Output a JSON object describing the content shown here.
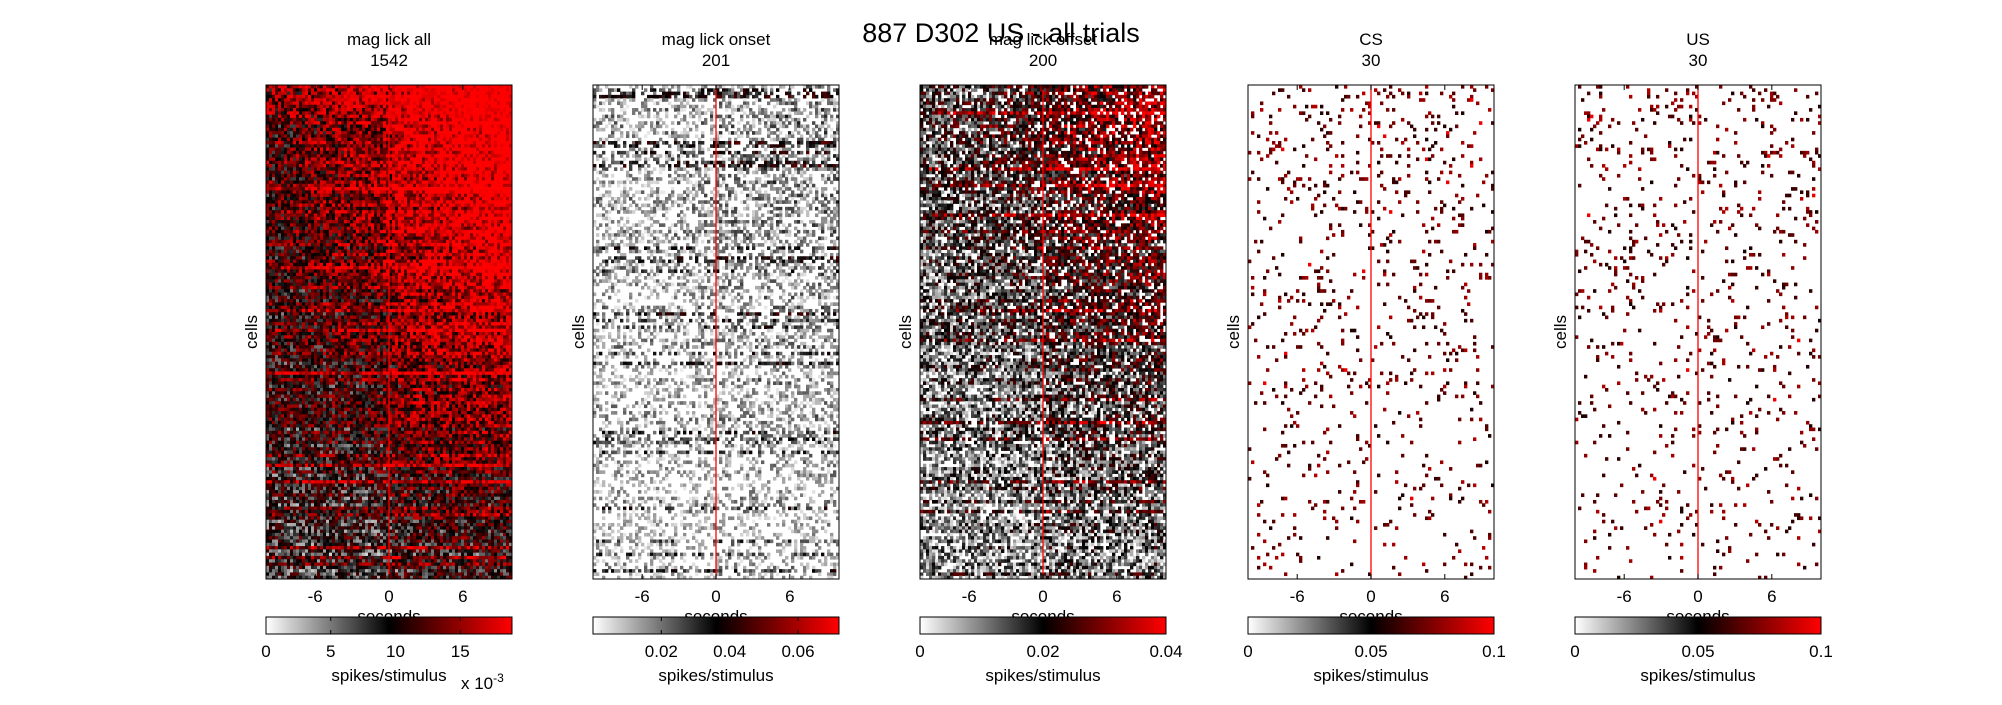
{
  "figure": {
    "title": "887 D302 US - all trials"
  },
  "chart_data": [
    {
      "type": "heatmap",
      "title": "mag lick  all",
      "subtitle": "1542",
      "xlabel": "seconds",
      "ylabel": "cells",
      "xlim": [
        -10,
        10
      ],
      "xticks": [
        -6,
        0,
        6
      ],
      "event_line_x": 0,
      "density": "high",
      "colorbar": {
        "label": "spikes/stimulus",
        "range": [
          0,
          0.019
        ],
        "ticks": [
          0,
          0.005,
          0.01,
          0.015
        ],
        "tick_labels": [
          "0",
          "5",
          "10",
          "15"
        ],
        "exponent_label": "x 10",
        "exponent_power": "-3",
        "colormap": [
          "#ffffff",
          "#000000",
          "#ff0000"
        ]
      }
    },
    {
      "type": "heatmap",
      "title": "mag lick  onset",
      "subtitle": "201",
      "xlabel": "seconds",
      "ylabel": "cells",
      "xlim": [
        -10,
        10
      ],
      "xticks": [
        -6,
        0,
        6
      ],
      "event_line_x": 0,
      "density": "low",
      "colorbar": {
        "label": "spikes/stimulus",
        "range": [
          0,
          0.072
        ],
        "ticks": [
          0.02,
          0.04,
          0.06
        ],
        "tick_labels": [
          "0.02",
          "0.04",
          "0.06"
        ],
        "colormap": [
          "#ffffff",
          "#000000",
          "#ff0000"
        ]
      }
    },
    {
      "type": "heatmap",
      "title": "mag lick  offset",
      "subtitle": "200",
      "xlabel": "seconds",
      "ylabel": "cells",
      "xlim": [
        -10,
        10
      ],
      "xticks": [
        -6,
        0,
        6
      ],
      "event_line_x": 0,
      "density": "medium",
      "colorbar": {
        "label": "spikes/stimulus",
        "range": [
          0,
          0.04
        ],
        "ticks": [
          0,
          0.02,
          0.04
        ],
        "tick_labels": [
          "0",
          "0.02",
          "0.04"
        ],
        "colormap": [
          "#ffffff",
          "#000000",
          "#ff0000"
        ]
      }
    },
    {
      "type": "heatmap",
      "title": "CS",
      "subtitle": "30",
      "xlabel": "seconds",
      "ylabel": "cells",
      "xlim": [
        -10,
        10
      ],
      "xticks": [
        -6,
        0,
        6
      ],
      "event_line_x": 0,
      "density": "sparse",
      "colorbar": {
        "label": "spikes/stimulus",
        "range": [
          0,
          0.1
        ],
        "ticks": [
          0,
          0.05,
          0.1
        ],
        "tick_labels": [
          "0",
          "0.05",
          "0.1"
        ],
        "colormap": [
          "#ffffff",
          "#000000",
          "#ff0000"
        ]
      }
    },
    {
      "type": "heatmap",
      "title": "US",
      "subtitle": "30",
      "xlabel": "seconds",
      "ylabel": "cells",
      "xlim": [
        -10,
        10
      ],
      "xticks": [
        -6,
        0,
        6
      ],
      "event_line_x": 0,
      "density": "sparse",
      "colorbar": {
        "label": "spikes/stimulus",
        "range": [
          0,
          0.1
        ],
        "ticks": [
          0,
          0.05,
          0.1
        ],
        "tick_labels": [
          "0",
          "0.05",
          "0.1"
        ],
        "colormap": [
          "#ffffff",
          "#000000",
          "#ff0000"
        ]
      }
    }
  ]
}
